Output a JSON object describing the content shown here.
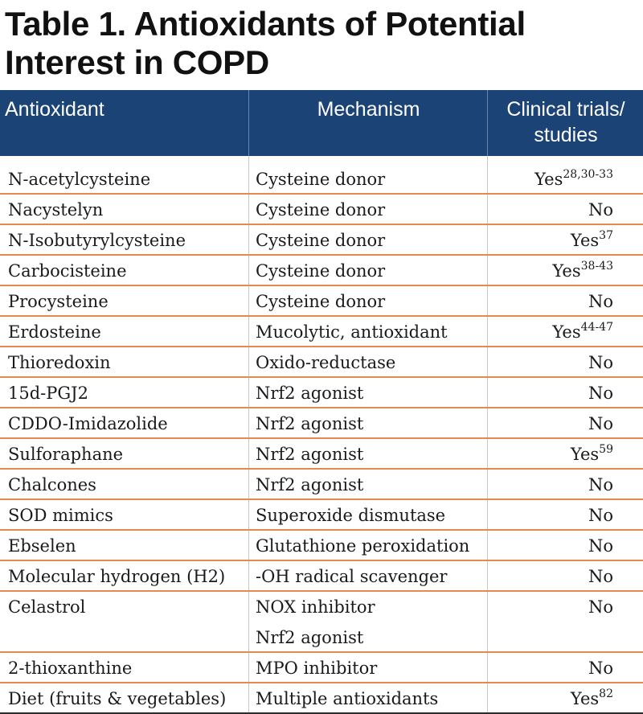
{
  "title": "Table 1. Antioxidants of Potential Interest in COPD",
  "header": {
    "antioxidant": "Antioxidant",
    "mechanism": "Mechanism",
    "trials_line1": "Clinical trials/",
    "trials_line2": "studies"
  },
  "rows": [
    {
      "antioxidant": "N-acetylcysteine",
      "mechanism": [
        "Cysteine donor"
      ],
      "trials": "Yes",
      "refs": "28,30-33"
    },
    {
      "antioxidant": "Nacystelyn",
      "mechanism": [
        "Cysteine donor"
      ],
      "trials": "No",
      "refs": ""
    },
    {
      "antioxidant": "N-Isobutyrylcysteine",
      "mechanism": [
        "Cysteine donor"
      ],
      "trials": "Yes",
      "refs": "37"
    },
    {
      "antioxidant": "Carbocisteine",
      "mechanism": [
        "Cysteine donor"
      ],
      "trials": "Yes",
      "refs": "38-43"
    },
    {
      "antioxidant": "Procysteine",
      "mechanism": [
        "Cysteine donor"
      ],
      "trials": "No",
      "refs": ""
    },
    {
      "antioxidant": "Erdosteine",
      "mechanism": [
        "Mucolytic, antioxidant"
      ],
      "trials": "Yes",
      "refs": "44-47"
    },
    {
      "antioxidant": "Thioredoxin",
      "mechanism": [
        "Oxido-reductase"
      ],
      "trials": "No",
      "refs": ""
    },
    {
      "antioxidant": "15d-PGJ2",
      "mechanism": [
        "Nrf2 agonist"
      ],
      "trials": "No",
      "refs": ""
    },
    {
      "antioxidant": "CDDO-Imidazolide",
      "mechanism": [
        "Nrf2 agonist"
      ],
      "trials": "No",
      "refs": ""
    },
    {
      "antioxidant": "Sulforaphane",
      "mechanism": [
        "Nrf2 agonist"
      ],
      "trials": "Yes",
      "refs": "59"
    },
    {
      "antioxidant": "Chalcones",
      "mechanism": [
        "Nrf2 agonist"
      ],
      "trials": "No",
      "refs": ""
    },
    {
      "antioxidant": "SOD mimics",
      "mechanism": [
        "Superoxide dismutase"
      ],
      "trials": "No",
      "refs": ""
    },
    {
      "antioxidant": "Ebselen",
      "mechanism": [
        "Glutathione peroxidation"
      ],
      "trials": "No",
      "refs": ""
    },
    {
      "antioxidant": "Molecular hydrogen (H2)",
      "mechanism": [
        "-OH radical scavenger"
      ],
      "trials": "No",
      "refs": ""
    },
    {
      "antioxidant": "Celastrol",
      "mechanism": [
        "NOX inhibitor",
        "Nrf2 agonist"
      ],
      "trials": "No",
      "refs": ""
    },
    {
      "antioxidant": "2-thioxanthine",
      "mechanism": [
        "MPO inhibitor"
      ],
      "trials": "No",
      "refs": ""
    },
    {
      "antioxidant": "Diet (fruits & vegetables)",
      "mechanism": [
        "Multiple antioxidants"
      ],
      "trials": "Yes",
      "refs": "82"
    }
  ]
}
